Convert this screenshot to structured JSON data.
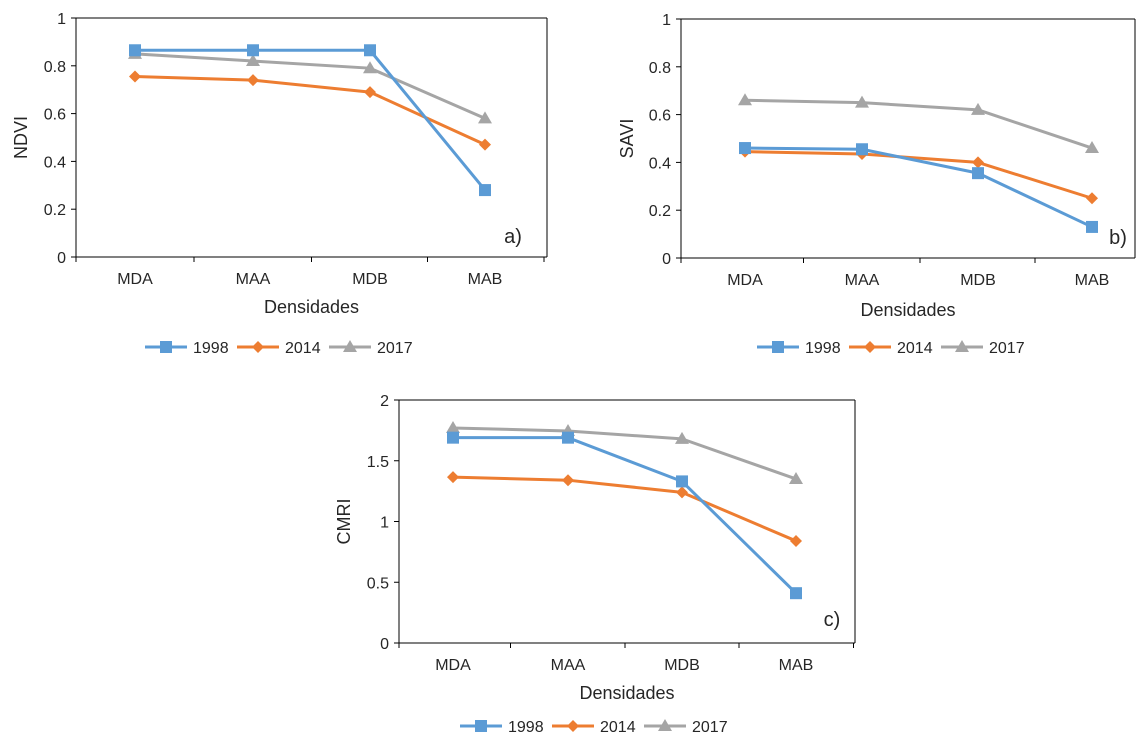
{
  "colors": {
    "1998": "#5B9BD5",
    "2014": "#ED7D31",
    "2017": "#A5A5A5",
    "axis": "#000000",
    "text": "#262626"
  },
  "legend": [
    "1998",
    "2014",
    "2017"
  ],
  "chart_data": [
    {
      "type": "line",
      "panel_label": "a)",
      "categories": [
        "MDA",
        "MAA",
        "MDB",
        "MAB"
      ],
      "xlabel": "Densidades",
      "ylabel": "NDVI",
      "ylim": [
        0,
        1
      ],
      "yticks": [
        "0",
        "0.2",
        "0.4",
        "0.6",
        "0.8",
        "1"
      ],
      "series": [
        {
          "name": "1998",
          "marker": "square",
          "values": [
            0.865,
            0.865,
            0.865,
            0.28
          ]
        },
        {
          "name": "2014",
          "marker": "diamond",
          "values": [
            0.755,
            0.74,
            0.69,
            0.47
          ]
        },
        {
          "name": "2017",
          "marker": "triangle",
          "values": [
            0.85,
            0.82,
            0.79,
            0.58
          ]
        }
      ]
    },
    {
      "type": "line",
      "panel_label": "b)",
      "categories": [
        "MDA",
        "MAA",
        "MDB",
        "MAB"
      ],
      "xlabel": "Densidades",
      "ylabel": "SAVI",
      "ylim": [
        0,
        1
      ],
      "yticks": [
        "0",
        "0.2",
        "0.4",
        "0.6",
        "0.8",
        "1"
      ],
      "series": [
        {
          "name": "1998",
          "marker": "square",
          "values": [
            0.46,
            0.455,
            0.355,
            0.13
          ]
        },
        {
          "name": "2014",
          "marker": "diamond",
          "values": [
            0.445,
            0.435,
            0.4,
            0.25
          ]
        },
        {
          "name": "2017",
          "marker": "triangle",
          "values": [
            0.66,
            0.65,
            0.62,
            0.46
          ]
        }
      ]
    },
    {
      "type": "line",
      "panel_label": "c)",
      "categories": [
        "MDA",
        "MAA",
        "MDB",
        "MAB"
      ],
      "xlabel": "Densidades",
      "ylabel": "CMRI",
      "ylim": [
        0,
        2
      ],
      "yticks": [
        "0",
        "0.5",
        "1",
        "1.5",
        "2"
      ],
      "series": [
        {
          "name": "1998",
          "marker": "square",
          "values": [
            1.69,
            1.69,
            1.33,
            0.41
          ]
        },
        {
          "name": "2014",
          "marker": "diamond",
          "values": [
            1.365,
            1.34,
            1.24,
            0.84
          ]
        },
        {
          "name": "2017",
          "marker": "triangle",
          "values": [
            1.77,
            1.745,
            1.68,
            1.35
          ]
        }
      ]
    }
  ]
}
